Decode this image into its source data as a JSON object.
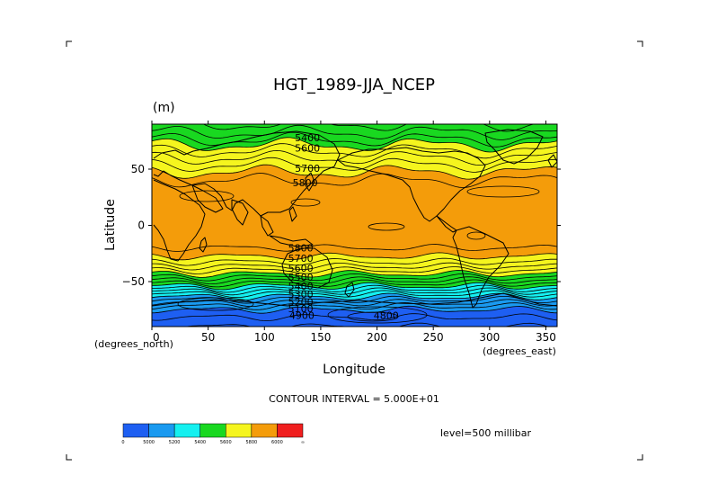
{
  "colors": {
    "band_lt_4900": "#1e5ff2",
    "band_5000": "#1a9af0",
    "band_5200": "#15f0f0",
    "band_5400": "#19d820",
    "band_5600": "#f5f51e",
    "band_5800": "#f49c0a",
    "band_6000": "#f01e1e",
    "coast": "#000000",
    "contour": "#000000"
  },
  "chart_data": {
    "type": "contour",
    "title": "HGT_1989-JJA_NCEP",
    "units_label": "(m)",
    "xlabel": "Longitude",
    "ylabel": "Latitude",
    "x_unit_label": "(degrees_east)",
    "y_unit_label": "(degrees_north)",
    "xlim": [
      0,
      360
    ],
    "ylim": [
      -90,
      90
    ],
    "x_ticks": [
      "0",
      "50",
      "100",
      "150",
      "200",
      "250",
      "300",
      "350"
    ],
    "x_tick_values": [
      0,
      50,
      100,
      150,
      200,
      250,
      300,
      350
    ],
    "y_ticks": [
      "50",
      "0",
      "−50"
    ],
    "y_tick_values": [
      50,
      0,
      -50
    ],
    "contour_interval_text": "CONTOUR INTERVAL = 5.000E+01",
    "contour_interval": 50,
    "level_text": "level=500 millibar",
    "zonal_profile": {
      "lat": [
        90,
        85,
        80,
        75,
        70,
        65,
        60,
        55,
        50,
        45,
        40,
        35,
        30,
        20,
        10,
        0,
        -10,
        -20,
        -25,
        -30,
        -35,
        -40,
        -45,
        -50,
        -55,
        -60,
        -65,
        -70,
        -75,
        -80,
        -85,
        -90
      ],
      "hgt": [
        5450,
        5480,
        5520,
        5560,
        5620,
        5660,
        5700,
        5740,
        5780,
        5820,
        5850,
        5870,
        5880,
        5880,
        5875,
        5870,
        5865,
        5850,
        5820,
        5780,
        5720,
        5650,
        5570,
        5480,
        5380,
        5270,
        5170,
        5080,
        5000,
        4960,
        4930,
        4900
      ]
    },
    "contour_labels": [
      {
        "text": "5400",
        "lon": 127,
        "lat": 78
      },
      {
        "text": "5600",
        "lon": 127,
        "lat": 69
      },
      {
        "text": "5700",
        "lon": 127,
        "lat": 51
      },
      {
        "text": "5800",
        "lon": 125,
        "lat": 38
      },
      {
        "text": "5800",
        "lon": 121,
        "lat": -20
      },
      {
        "text": "5700",
        "lon": 121,
        "lat": -29
      },
      {
        "text": "5600",
        "lon": 121,
        "lat": -38
      },
      {
        "text": "5500",
        "lon": 121,
        "lat": -46
      },
      {
        "text": "5400",
        "lon": 121,
        "lat": -54
      },
      {
        "text": "5300",
        "lon": 121,
        "lat": -61
      },
      {
        "text": "5200",
        "lon": 121,
        "lat": -68
      },
      {
        "text": "5100",
        "lon": 121,
        "lat": -74
      },
      {
        "text": "4900",
        "lon": 122,
        "lat": -80
      },
      {
        "text": "4800",
        "lon": 197,
        "lat": -80
      }
    ],
    "colorbar": {
      "colors": [
        "#1e5ff2",
        "#1a9af0",
        "#15f0f0",
        "#19d820",
        "#f5f51e",
        "#f49c0a",
        "#f01e1e"
      ],
      "labels": [
        "0",
        "5000",
        "5200",
        "5400",
        "5600",
        "5800",
        "6000",
        "∞"
      ]
    }
  }
}
